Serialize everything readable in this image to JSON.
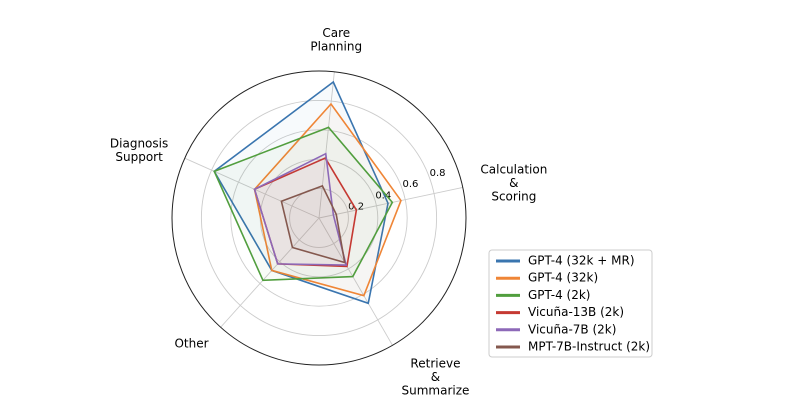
{
  "chart_data": {
    "type": "radar",
    "axes": [
      [
        "Calculation",
        "&",
        "Scoring"
      ],
      [
        "Care",
        "Planning"
      ],
      [
        "Diagnosis",
        "Support"
      ],
      [
        "Other"
      ],
      [
        "Retrieve",
        "&",
        "Summarize"
      ]
    ],
    "rlim": [
      0,
      1.0
    ],
    "rticks": [
      "0.2",
      "0.4",
      "0.6",
      "0.8"
    ],
    "legend_position": "lower-right",
    "series": [
      {
        "name": "GPT-4 (32k + MR)",
        "color": "#3a75af",
        "values": [
          0.48,
          0.93,
          0.78,
          0.48,
          0.67
        ]
      },
      {
        "name": "GPT-4 (32k)",
        "color": "#ef8536",
        "values": [
          0.57,
          0.78,
          0.48,
          0.48,
          0.61
        ]
      },
      {
        "name": "GPT-4 (2k)",
        "color": "#519e3e",
        "values": [
          0.51,
          0.62,
          0.78,
          0.57,
          0.46
        ]
      },
      {
        "name": "Vicuña-13B (2k)",
        "color": "#c53932",
        "values": [
          0.26,
          0.41,
          0.48,
          0.42,
          0.38
        ]
      },
      {
        "name": "Vicuña-7B (2k)",
        "color": "#8d69b8",
        "values": [
          0.1,
          0.44,
          0.48,
          0.42,
          0.37
        ]
      },
      {
        "name": "MPT-7B-Instruct (2k)",
        "color": "#84584e",
        "values": [
          0.12,
          0.22,
          0.28,
          0.27,
          0.35
        ]
      }
    ]
  }
}
